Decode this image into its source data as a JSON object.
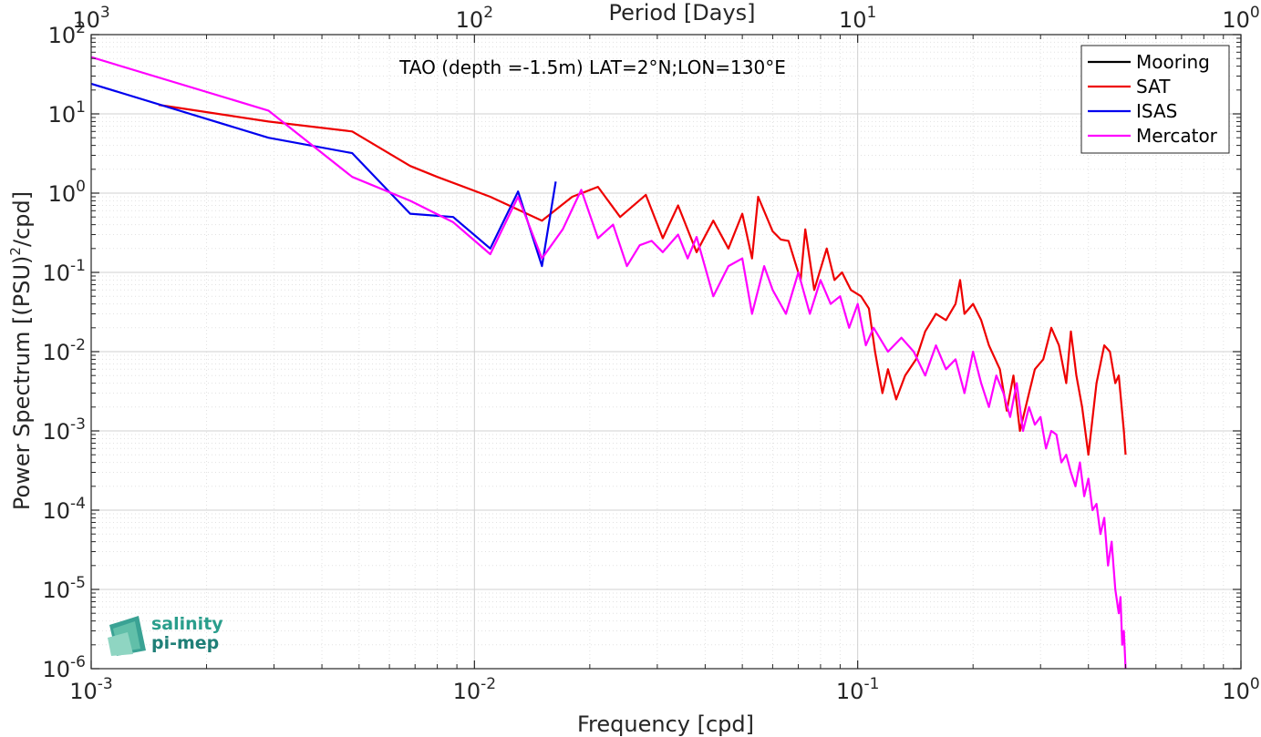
{
  "chart_data": {
    "type": "line",
    "title": "TAO (depth =-1.5m) LAT=2°N;LON=130°E",
    "xlabel": "Frequency [cpd]",
    "ylabel": "Power Spectrum [(PSU)²/cpd]",
    "x2label": "Period [Days]",
    "xscale": "log",
    "yscale": "log",
    "xlim": [
      0.001,
      1
    ],
    "ylim": [
      1e-06,
      100
    ],
    "grid": true,
    "legend_position": "top-right",
    "x_ticks": [
      {
        "base": "10",
        "exp": "-3",
        "value": 0.001
      },
      {
        "base": "10",
        "exp": "-2",
        "value": 0.01
      },
      {
        "base": "10",
        "exp": "-1",
        "value": 0.1
      },
      {
        "base": "10",
        "exp": "0",
        "value": 1
      }
    ],
    "y_ticks": [
      {
        "base": "10",
        "exp": "2",
        "value": 100
      },
      {
        "base": "10",
        "exp": "1",
        "value": 10
      },
      {
        "base": "10",
        "exp": "0",
        "value": 1
      },
      {
        "base": "10",
        "exp": "-1",
        "value": 0.1
      },
      {
        "base": "10",
        "exp": "-2",
        "value": 0.01
      },
      {
        "base": "10",
        "exp": "-3",
        "value": 0.001
      },
      {
        "base": "10",
        "exp": "-4",
        "value": 0.0001
      },
      {
        "base": "10",
        "exp": "-5",
        "value": 1e-05
      },
      {
        "base": "10",
        "exp": "-6",
        "value": 1e-06
      }
    ],
    "top_ticks": [
      {
        "base": "10",
        "exp": "3",
        "value": 0.001
      },
      {
        "base": "10",
        "exp": "2",
        "value": 0.01
      },
      {
        "base": "10",
        "exp": "1",
        "value": 0.1
      },
      {
        "base": "10",
        "exp": "0",
        "value": 1
      }
    ],
    "series": [
      {
        "name": "Mooring",
        "color": "#000000",
        "x": [],
        "y": []
      },
      {
        "name": "SAT",
        "color": "#ee0000",
        "x": [
          0.0015,
          0.0029,
          0.0048,
          0.0068,
          0.008,
          0.011,
          0.015,
          0.018,
          0.021,
          0.024,
          0.028,
          0.031,
          0.034,
          0.038,
          0.042,
          0.046,
          0.05,
          0.053,
          0.055,
          0.06,
          0.063,
          0.066,
          0.071,
          0.073,
          0.077,
          0.083,
          0.087,
          0.091,
          0.096,
          0.102,
          0.107,
          0.111,
          0.116,
          0.12,
          0.126,
          0.133,
          0.142,
          0.15,
          0.16,
          0.17,
          0.18,
          0.185,
          0.19,
          0.2,
          0.21,
          0.22,
          0.235,
          0.245,
          0.255,
          0.265,
          0.28,
          0.29,
          0.305,
          0.32,
          0.335,
          0.35,
          0.36,
          0.372,
          0.385,
          0.4,
          0.42,
          0.44,
          0.455,
          0.47,
          0.48,
          0.495,
          0.5
        ],
        "y": [
          13,
          8,
          6,
          2.2,
          1.6,
          0.9,
          0.45,
          0.9,
          1.2,
          0.5,
          0.95,
          0.27,
          0.7,
          0.18,
          0.45,
          0.2,
          0.55,
          0.15,
          0.9,
          0.33,
          0.26,
          0.25,
          0.08,
          0.35,
          0.06,
          0.2,
          0.08,
          0.1,
          0.06,
          0.05,
          0.035,
          0.01,
          0.003,
          0.006,
          0.0025,
          0.005,
          0.008,
          0.018,
          0.03,
          0.025,
          0.04,
          0.08,
          0.03,
          0.04,
          0.025,
          0.012,
          0.006,
          0.0018,
          0.005,
          0.001,
          0.003,
          0.006,
          0.008,
          0.02,
          0.012,
          0.004,
          0.018,
          0.005,
          0.002,
          0.0005,
          0.004,
          0.012,
          0.01,
          0.004,
          0.005,
          0.001,
          0.0005
        ]
      },
      {
        "name": "ISAS",
        "color": "#0000ee",
        "x": [
          0.001,
          0.0029,
          0.0048,
          0.0068,
          0.0088,
          0.011,
          0.013,
          0.015,
          0.0163
        ],
        "y": [
          24,
          5,
          3.2,
          0.55,
          0.5,
          0.2,
          1.05,
          0.12,
          1.4
        ]
      },
      {
        "name": "Mercator",
        "color": "#ff00ff",
        "x": [
          0.001,
          0.0029,
          0.0048,
          0.0068,
          0.0088,
          0.011,
          0.013,
          0.015,
          0.017,
          0.019,
          0.021,
          0.023,
          0.025,
          0.027,
          0.029,
          0.031,
          0.034,
          0.036,
          0.038,
          0.042,
          0.046,
          0.05,
          0.053,
          0.057,
          0.06,
          0.065,
          0.07,
          0.075,
          0.08,
          0.085,
          0.09,
          0.095,
          0.1,
          0.105,
          0.11,
          0.12,
          0.13,
          0.14,
          0.15,
          0.16,
          0.17,
          0.18,
          0.19,
          0.2,
          0.21,
          0.22,
          0.23,
          0.24,
          0.25,
          0.26,
          0.27,
          0.28,
          0.29,
          0.3,
          0.31,
          0.32,
          0.33,
          0.34,
          0.35,
          0.36,
          0.37,
          0.38,
          0.39,
          0.4,
          0.41,
          0.42,
          0.43,
          0.44,
          0.45,
          0.46,
          0.47,
          0.48,
          0.485,
          0.49,
          0.495,
          0.5
        ],
        "y": [
          52,
          11,
          1.6,
          0.8,
          0.43,
          0.17,
          0.9,
          0.15,
          0.35,
          1.1,
          0.27,
          0.4,
          0.12,
          0.22,
          0.25,
          0.18,
          0.3,
          0.15,
          0.28,
          0.05,
          0.12,
          0.15,
          0.03,
          0.12,
          0.06,
          0.03,
          0.1,
          0.03,
          0.08,
          0.04,
          0.05,
          0.02,
          0.04,
          0.012,
          0.02,
          0.01,
          0.015,
          0.01,
          0.005,
          0.012,
          0.006,
          0.008,
          0.003,
          0.01,
          0.004,
          0.002,
          0.005,
          0.003,
          0.0015,
          0.004,
          0.001,
          0.002,
          0.0012,
          0.0015,
          0.0006,
          0.001,
          0.0009,
          0.0004,
          0.0005,
          0.0003,
          0.0002,
          0.0004,
          0.00015,
          0.00025,
          0.0001,
          0.00012,
          5e-05,
          8e-05,
          2e-05,
          4e-05,
          1e-05,
          5e-06,
          8e-06,
          2e-06,
          3e-06,
          1e-06
        ]
      }
    ]
  },
  "logo": {
    "line1": "salinity",
    "line2": "pi-mep"
  }
}
